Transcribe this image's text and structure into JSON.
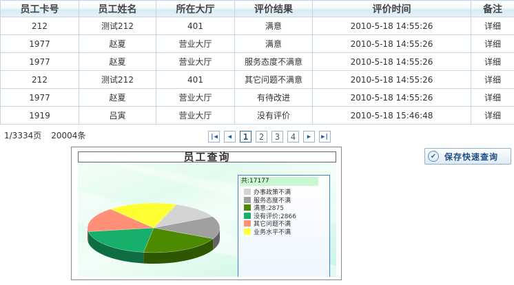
{
  "table": {
    "headers": [
      "员工卡号",
      "员工姓名",
      "所在大厅",
      "评价结果",
      "评价时间",
      "备注"
    ],
    "rows": [
      {
        "card": "212",
        "name": "测试212",
        "hall": "401",
        "result": "满意",
        "time": "2010-5-18 14:55:26",
        "note": "详细"
      },
      {
        "card": "1977",
        "name": "赵夏",
        "hall": "营业大厅",
        "result": "满意",
        "time": "2010-5-18 14:55:26",
        "note": "详细"
      },
      {
        "card": "1977",
        "name": "赵夏",
        "hall": "营业大厅",
        "result": "服务态度不满意",
        "time": "2010-5-18 14:55:26",
        "note": "详细"
      },
      {
        "card": "212",
        "name": "测试212",
        "hall": "401",
        "result": "其它问题不满意",
        "time": "2010-5-18 14:55:26",
        "note": "详细"
      },
      {
        "card": "1977",
        "name": "赵夏",
        "hall": "营业大厅",
        "result": "有待改进",
        "time": "2010-5-18 14:55:26",
        "note": "详细"
      },
      {
        "card": "1919",
        "name": "吕寅",
        "hall": "营业大厅",
        "result": "没有评价",
        "time": "2010-5-18 15:46:48",
        "note": "详细"
      }
    ]
  },
  "pager": {
    "page_info": "1/3334页",
    "record_count": "20004条",
    "first": "|◀",
    "prev": "◀",
    "pages": [
      "1",
      "2",
      "3",
      "4"
    ],
    "current": "1",
    "next": "▶",
    "last": "▶|"
  },
  "save_button": {
    "label": "保存快速查询",
    "icon": "check-circle-icon"
  },
  "chart_panel": {
    "title": "员工查询"
  },
  "chart_data": {
    "type": "pie",
    "total_label": "共:17177",
    "legend_placement": "right",
    "slices": [
      {
        "label": "办事政策不满",
        "color": "#d3d3d3",
        "value": 1700
      },
      {
        "label": "服务态度不满",
        "color": "#a0a0a0",
        "value": 2100
      },
      {
        "label": "满意:2875",
        "color": "#4c8a00",
        "value": 2875
      },
      {
        "label": "没有评价:2866",
        "color": "#17b06a",
        "value": 2866
      },
      {
        "label": "其它问题不满",
        "color": "#ff9077",
        "value": 2300
      },
      {
        "label": "业务水平不满",
        "color": "#ffff33",
        "value": 2400
      }
    ]
  },
  "colors": {
    "header_grad_mid": "#d9ebf3",
    "border": "#c5d6e4",
    "legend_border": "#3b7fd8"
  }
}
